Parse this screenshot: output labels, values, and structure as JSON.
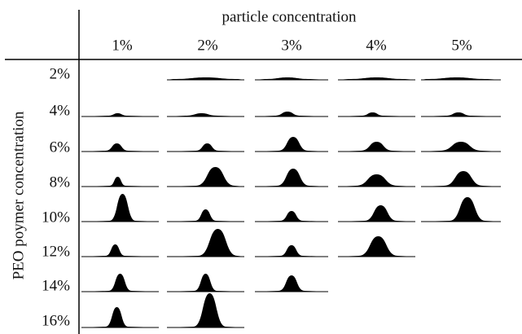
{
  "figure": {
    "title": "particle concentration",
    "columns": [
      "1%",
      "2%",
      "3%",
      "4%",
      "5%"
    ],
    "y_label": "PEO poymer concentration",
    "rows": [
      "2%",
      "4%",
      "6%",
      "8%",
      "10%",
      "12%",
      "14%",
      "16%"
    ]
  }
}
